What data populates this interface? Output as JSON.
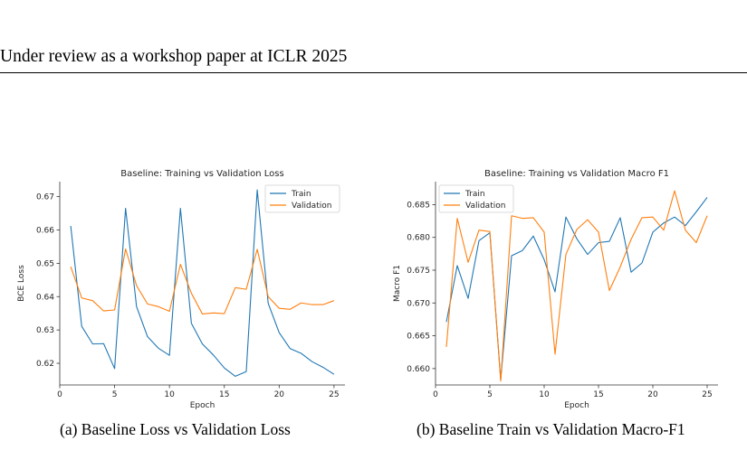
{
  "header": {
    "text": "Under review as a workshop paper at ICLR 2025"
  },
  "captions": {
    "a": "(a) Baseline Loss vs Validation Loss",
    "b": "(b) Baseline Train vs Validation Macro-F1"
  },
  "chart_data": [
    {
      "type": "line",
      "title": "Baseline: Training vs Validation Loss",
      "xlabel": "Epoch",
      "ylabel": "BCE Loss",
      "xlim": [
        0,
        26
      ],
      "ylim": [
        0.6135,
        0.6745
      ],
      "xticks": [
        0,
        5,
        10,
        15,
        20,
        25
      ],
      "yticks": [
        0.62,
        0.63,
        0.64,
        0.65,
        0.66,
        0.67
      ],
      "ytick_labels": [
        "0.62",
        "0.63",
        "0.64",
        "0.65",
        "0.66",
        "0.67"
      ],
      "grid": false,
      "legend": "top-right",
      "x": [
        1,
        2,
        3,
        4,
        5,
        6,
        7,
        8,
        9,
        10,
        11,
        12,
        13,
        14,
        15,
        16,
        17,
        18,
        19,
        20,
        21,
        22,
        23,
        24,
        25
      ],
      "series": [
        {
          "name": "Train",
          "color": "#1f77b4",
          "values": [
            0.6612,
            0.6311,
            0.6258,
            0.6259,
            0.6184,
            0.6665,
            0.637,
            0.628,
            0.6245,
            0.6224,
            0.6665,
            0.632,
            0.6258,
            0.6225,
            0.6186,
            0.6161,
            0.6175,
            0.672,
            0.638,
            0.6292,
            0.6244,
            0.623,
            0.6205,
            0.6188,
            0.6167
          ]
        },
        {
          "name": "Validation",
          "color": "#ff7f0e",
          "values": [
            0.649,
            0.6396,
            0.6388,
            0.6357,
            0.636,
            0.6543,
            0.6433,
            0.6378,
            0.637,
            0.6356,
            0.6497,
            0.641,
            0.6348,
            0.6351,
            0.6349,
            0.6427,
            0.6422,
            0.6542,
            0.64,
            0.6365,
            0.6362,
            0.6381,
            0.6376,
            0.6376,
            0.6388
          ]
        }
      ]
    },
    {
      "type": "line",
      "title": "Baseline: Training vs Validation Macro F1",
      "xlabel": "Epoch",
      "ylabel": "Macro F1",
      "xlim": [
        0,
        26
      ],
      "ylim": [
        0.6575,
        0.6885
      ],
      "xticks": [
        0,
        5,
        10,
        15,
        20,
        25
      ],
      "yticks": [
        0.66,
        0.665,
        0.67,
        0.675,
        0.68,
        0.685
      ],
      "ytick_labels": [
        "0.660",
        "0.665",
        "0.670",
        "0.675",
        "0.680",
        "0.685"
      ],
      "grid": false,
      "legend": "top-left",
      "x": [
        1,
        2,
        3,
        4,
        5,
        6,
        7,
        8,
        9,
        10,
        11,
        12,
        13,
        14,
        15,
        16,
        17,
        18,
        19,
        20,
        21,
        22,
        23,
        24,
        25
      ],
      "series": [
        {
          "name": "Train",
          "color": "#1f77b4",
          "values": [
            0.6671,
            0.6757,
            0.6707,
            0.6795,
            0.6807,
            0.6583,
            0.6772,
            0.678,
            0.6802,
            0.6766,
            0.6717,
            0.6831,
            0.6798,
            0.6774,
            0.6792,
            0.6794,
            0.683,
            0.6747,
            0.6761,
            0.6808,
            0.6822,
            0.6831,
            0.6818,
            0.6839,
            0.6861
          ]
        },
        {
          "name": "Validation",
          "color": "#ff7f0e",
          "values": [
            0.6633,
            0.6829,
            0.6762,
            0.6811,
            0.6809,
            0.6581,
            0.6833,
            0.6829,
            0.683,
            0.6808,
            0.6622,
            0.6774,
            0.6812,
            0.6827,
            0.6808,
            0.6719,
            0.6755,
            0.6797,
            0.683,
            0.6831,
            0.6811,
            0.6871,
            0.6811,
            0.6792,
            0.6833
          ]
        }
      ]
    }
  ]
}
